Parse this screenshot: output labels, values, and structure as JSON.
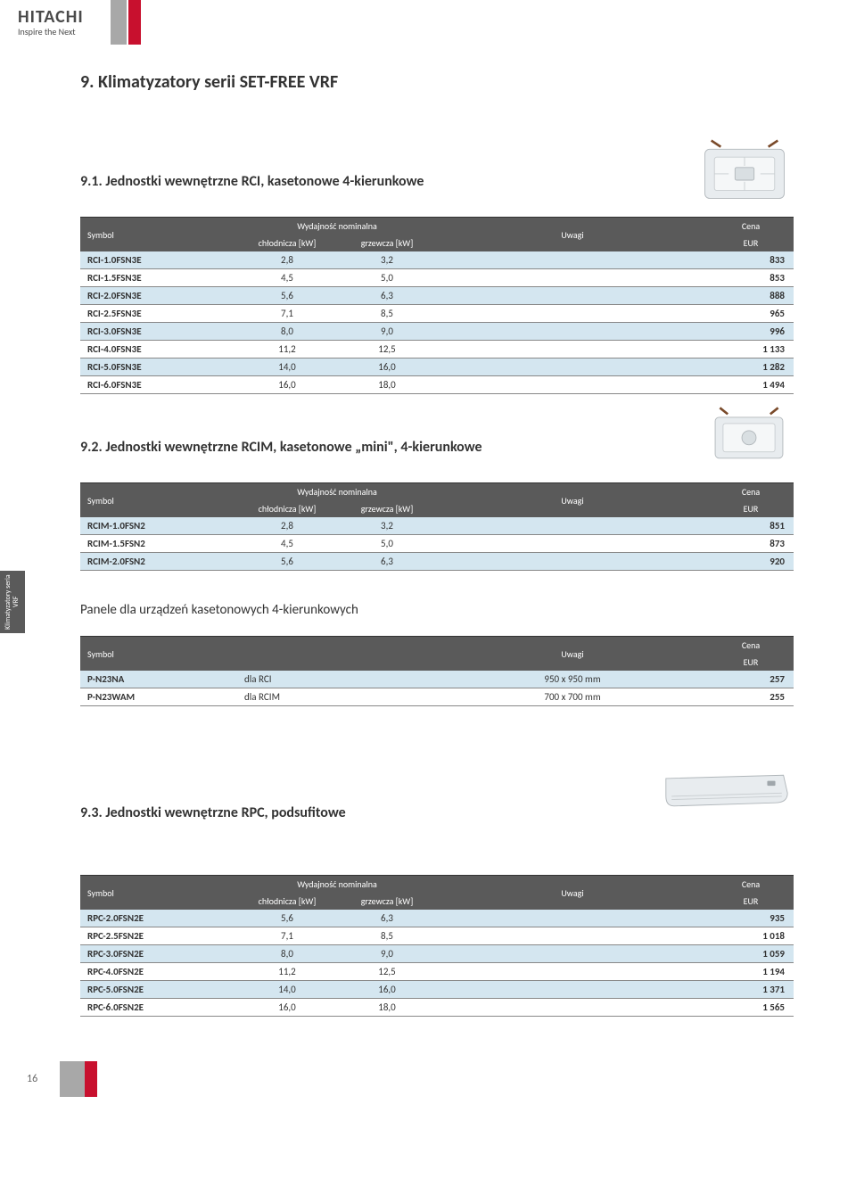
{
  "logo": {
    "main": "HITACHI",
    "sub": "Inspire the Next"
  },
  "page_number": "16",
  "side_tab": "Klimatyzatory seria VRF",
  "title": "9.   Klimatyzatory serii SET-FREE VRF",
  "colors": {
    "row_odd": "#d4e6f0",
    "row_even": "#ffffff",
    "header_bg": "#5a5a5a",
    "accent_red": "#c8102e",
    "accent_grey": "#a8a8a8"
  },
  "sections": {
    "s91": {
      "heading": "9.1.  Jednostki wewnętrzne RCI, kasetonowe 4-kierunkowe",
      "headers": {
        "symbol": "Symbol",
        "wn": "Wydajność nominalna",
        "chl": "chłodnicza [kW]",
        "grz": "grzewcza [kW]",
        "uwagi": "Uwagi",
        "cena": "Cena",
        "eur": "EUR"
      },
      "rows": [
        {
          "sym": "RCI-1.0FSN3E",
          "c": "2,8",
          "g": "3,2",
          "u": "",
          "p": "833"
        },
        {
          "sym": "RCI-1.5FSN3E",
          "c": "4,5",
          "g": "5,0",
          "u": "",
          "p": "853"
        },
        {
          "sym": "RCI-2.0FSN3E",
          "c": "5,6",
          "g": "6,3",
          "u": "",
          "p": "888"
        },
        {
          "sym": "RCI-2.5FSN3E",
          "c": "7,1",
          "g": "8,5",
          "u": "",
          "p": "965"
        },
        {
          "sym": "RCI-3.0FSN3E",
          "c": "8,0",
          "g": "9,0",
          "u": "",
          "p": "996"
        },
        {
          "sym": "RCI-4.0FSN3E",
          "c": "11,2",
          "g": "12,5",
          "u": "",
          "p": "1 133"
        },
        {
          "sym": "RCI-5.0FSN3E",
          "c": "14,0",
          "g": "16,0",
          "u": "",
          "p": "1 282"
        },
        {
          "sym": "RCI-6.0FSN3E",
          "c": "16,0",
          "g": "18,0",
          "u": "",
          "p": "1 494"
        }
      ]
    },
    "s92": {
      "heading": "9.2.  Jednostki wewnętrzne RCIM, kasetonowe „mini\", 4-kierunkowe",
      "rows": [
        {
          "sym": "RCIM-1.0FSN2",
          "c": "2,8",
          "g": "3,2",
          "u": "",
          "p": "851"
        },
        {
          "sym": "RCIM-1.5FSN2",
          "c": "4,5",
          "g": "5,0",
          "u": "",
          "p": "873"
        },
        {
          "sym": "RCIM-2.0FSN2",
          "c": "5,6",
          "g": "6,3",
          "u": "",
          "p": "920"
        }
      ]
    },
    "panels": {
      "heading": "Panele dla urządzeń kasetonowych 4-kierunkowych",
      "headers": {
        "symbol": "Symbol",
        "uwagi": "Uwagi",
        "cena": "Cena",
        "eur": "EUR"
      },
      "rows": [
        {
          "sym": "P-N23NA",
          "for": "dla RCI",
          "u": "950 x 950 mm",
          "p": "257"
        },
        {
          "sym": "P-N23WAM",
          "for": "dla RCIM",
          "u": "700 x 700 mm",
          "p": "255"
        }
      ]
    },
    "s93": {
      "heading": "9.3.  Jednostki wewnętrzne RPC, podsufitowe",
      "rows": [
        {
          "sym": "RPC-2.0FSN2E",
          "c": "5,6",
          "g": "6,3",
          "u": "",
          "p": "935"
        },
        {
          "sym": "RPC-2.5FSN2E",
          "c": "7,1",
          "g": "8,5",
          "u": "",
          "p": "1 018"
        },
        {
          "sym": "RPC-3.0FSN2E",
          "c": "8,0",
          "g": "9,0",
          "u": "",
          "p": "1 059"
        },
        {
          "sym": "RPC-4.0FSN2E",
          "c": "11,2",
          "g": "12,5",
          "u": "",
          "p": "1 194"
        },
        {
          "sym": "RPC-5.0FSN2E",
          "c": "14,0",
          "g": "16,0",
          "u": "",
          "p": "1 371"
        },
        {
          "sym": "RPC-6.0FSN2E",
          "c": "16,0",
          "g": "18,0",
          "u": "",
          "p": "1 565"
        }
      ]
    }
  }
}
